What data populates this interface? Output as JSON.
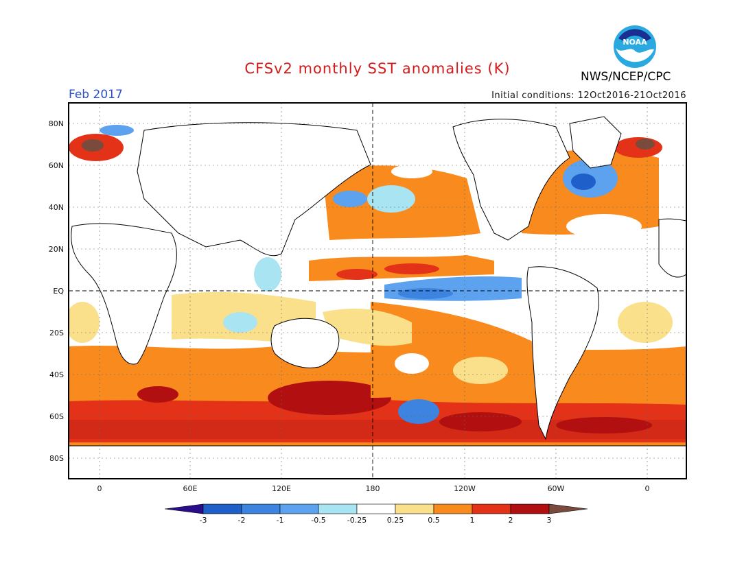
{
  "header": {
    "title": "CFSv2 monthly SST anomalies (K)",
    "org": "NWS/NCEP/CPC",
    "period": "Feb 2017",
    "initial_conditions": "Initial conditions: 12Oct2016-21Oct2016",
    "logo_text": "NOAA"
  },
  "axes": {
    "lat_labels": [
      "80N",
      "60N",
      "40N",
      "20N",
      "EQ",
      "20S",
      "40S",
      "60S",
      "80S"
    ],
    "lon_labels": [
      "0",
      "60E",
      "120E",
      "180",
      "120W",
      "60W",
      "0"
    ]
  },
  "colorbar": {
    "labels": [
      "-3",
      "-2",
      "-1",
      "-0.5",
      "-0.25",
      "0.25",
      "0.5",
      "1",
      "2",
      "3"
    ],
    "colors": [
      "#2a0d8a",
      "#1f5fc9",
      "#3d84e0",
      "#5ca2ee",
      "#a8e4f2",
      "#ffffff",
      "#fae08a",
      "#f98a1e",
      "#e43218",
      "#b21010",
      "#7a4a3c"
    ]
  }
}
